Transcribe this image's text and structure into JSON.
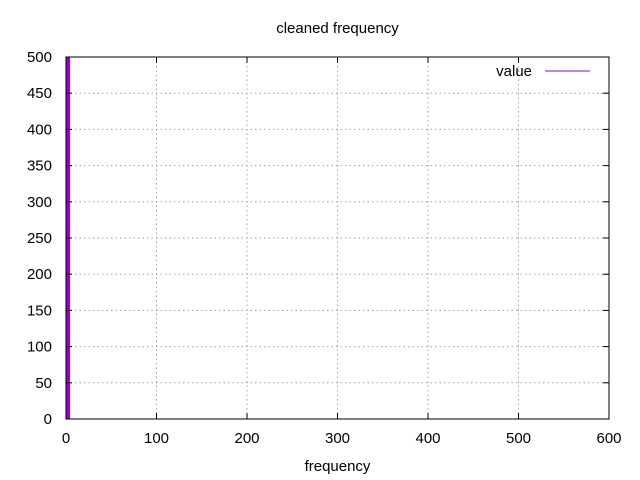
{
  "chart_data": {
    "type": "line",
    "title": "cleaned frequency",
    "xlabel": "frequency",
    "ylabel": "",
    "xlim": [
      0,
      600
    ],
    "ylim": [
      0,
      500
    ],
    "xticks": [
      0,
      100,
      200,
      300,
      400,
      500,
      600
    ],
    "yticks": [
      0,
      50,
      100,
      150,
      200,
      250,
      300,
      350,
      400,
      450,
      500
    ],
    "grid": true,
    "legend_position": "top-right",
    "series": [
      {
        "name": "value",
        "color": "#9400d3",
        "x": [
          0,
          1,
          1,
          2,
          2,
          3,
          3,
          4,
          4,
          600
        ],
        "y": [
          0,
          0,
          500,
          500,
          0,
          0,
          500,
          500,
          0,
          0
        ]
      }
    ]
  }
}
